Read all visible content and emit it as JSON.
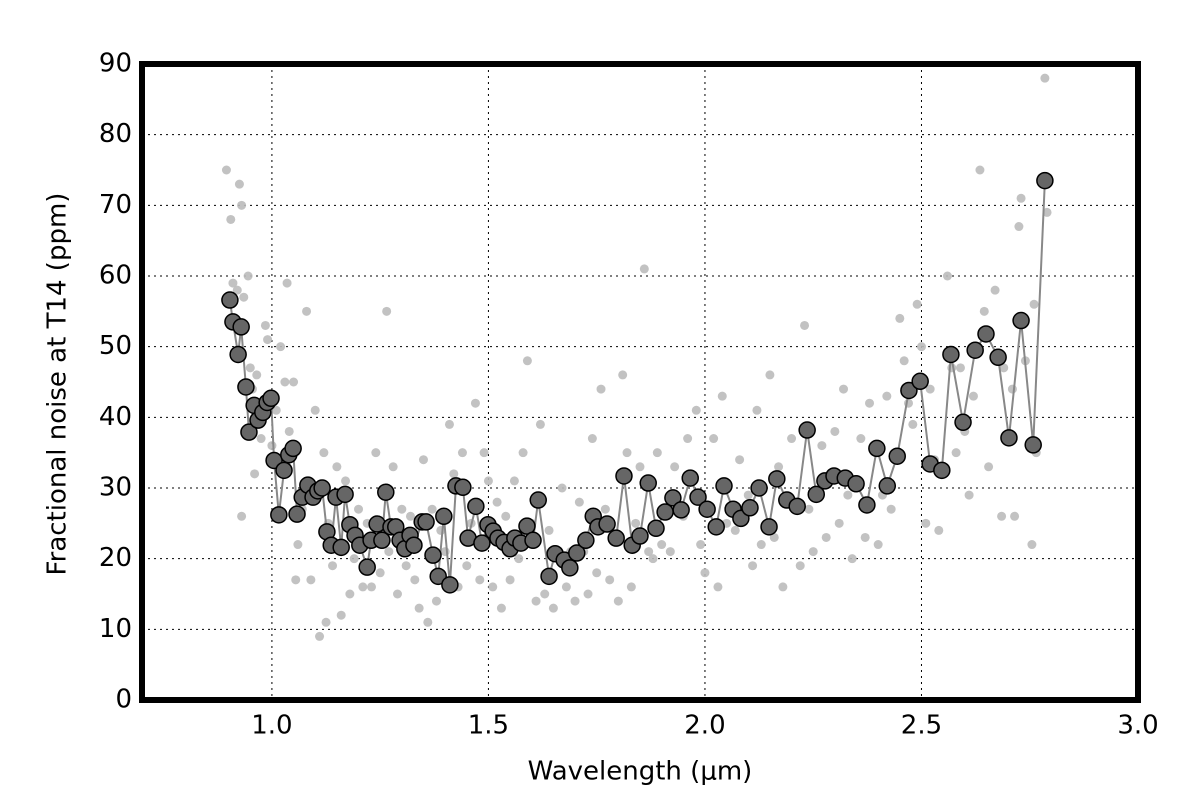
{
  "chart_data": {
    "type": "scatter",
    "xlabel": "Wavelength (μm)",
    "ylabel": "Fractional noise at T14 (ppm)",
    "xlim": [
      0.7,
      3.0
    ],
    "ylim": [
      0,
      90
    ],
    "xticks": [
      {
        "value": 1,
        "label": "1.0"
      },
      1.5,
      {
        "value": 2,
        "label": "2.0"
      },
      2.5,
      {
        "value": 3,
        "label": "3.0"
      }
    ],
    "yticks": [
      0,
      10,
      20,
      30,
      40,
      50,
      60,
      70,
      80,
      90
    ],
    "grid": true,
    "series": [
      {
        "color": "#bbbbbb",
        "line": false,
        "x": [
          0.895,
          0.905,
          0.91,
          0.92,
          0.925,
          0.93,
          0.935,
          0.945,
          0.95,
          0.955,
          0.96,
          0.965,
          0.93,
          0.94,
          0.975,
          0.985,
          0.99,
          1.0,
          1.01,
          1.02,
          1.03,
          1.035,
          1.04,
          1.05,
          1.055,
          1.06,
          1.07,
          1.08,
          1.085,
          1.09,
          1.1,
          1.11,
          1.12,
          1.125,
          1.13,
          1.14,
          1.15,
          1.16,
          1.17,
          1.18,
          1.19,
          1.2,
          1.21,
          1.22,
          1.23,
          1.24,
          1.25,
          1.265,
          1.27,
          1.28,
          1.29,
          1.3,
          1.31,
          1.32,
          1.33,
          1.34,
          1.35,
          1.36,
          1.37,
          1.38,
          1.39,
          1.4,
          1.41,
          1.42,
          1.43,
          1.44,
          1.45,
          1.46,
          1.47,
          1.48,
          1.49,
          1.5,
          1.51,
          1.52,
          1.53,
          1.54,
          1.55,
          1.56,
          1.57,
          1.58,
          1.59,
          1.6,
          1.61,
          1.62,
          1.63,
          1.64,
          1.65,
          1.66,
          1.67,
          1.68,
          1.69,
          1.7,
          1.71,
          1.72,
          1.73,
          1.74,
          1.75,
          1.76,
          1.77,
          1.78,
          1.79,
          1.8,
          1.81,
          1.82,
          1.83,
          1.84,
          1.85,
          1.86,
          1.87,
          1.88,
          1.89,
          1.9,
          1.92,
          1.93,
          1.95,
          1.96,
          1.98,
          1.99,
          2.0,
          2.02,
          2.03,
          2.04,
          2.05,
          2.07,
          2.08,
          2.1,
          2.11,
          2.12,
          2.13,
          2.15,
          2.16,
          2.17,
          2.18,
          2.2,
          2.22,
          2.23,
          2.24,
          2.25,
          2.27,
          2.28,
          2.3,
          2.31,
          2.32,
          2.33,
          2.34,
          2.36,
          2.37,
          2.38,
          2.4,
          2.41,
          2.42,
          2.43,
          2.45,
          2.46,
          2.47,
          2.48,
          2.49,
          2.5,
          2.51,
          2.52,
          2.53,
          2.54,
          2.56,
          2.57,
          2.58,
          2.59,
          2.6,
          2.61,
          2.62,
          2.635,
          2.645,
          2.655,
          2.67,
          2.685,
          2.69,
          2.71,
          2.715,
          2.725,
          2.73,
          2.74,
          2.755,
          2.76,
          2.765,
          2.785,
          2.79
        ],
        "values": [
          75,
          68,
          59,
          58,
          73,
          70,
          57,
          60,
          47,
          44,
          32,
          46,
          26,
          38,
          37,
          53,
          51,
          36,
          41,
          50,
          45,
          59,
          38,
          45,
          17,
          22,
          27,
          55,
          31,
          17,
          41,
          9,
          35,
          11,
          25,
          19,
          33,
          12,
          31,
          15,
          20,
          27,
          16,
          25,
          16,
          35,
          18,
          55,
          21,
          33,
          15,
          27,
          19,
          26,
          17,
          13,
          34,
          11,
          27,
          14,
          24,
          21,
          39,
          32,
          16,
          35,
          19,
          25,
          42,
          17,
          35,
          31,
          16,
          28,
          13,
          26,
          17,
          31,
          20,
          35,
          48,
          25,
          14,
          39,
          15,
          24,
          13,
          20,
          30,
          16,
          21,
          14,
          28,
          21,
          15,
          37,
          18,
          44,
          27,
          17,
          23,
          14,
          46,
          35,
          16,
          25,
          33,
          61,
          21,
          20,
          35,
          22,
          21,
          33,
          26,
          37,
          41,
          22,
          18,
          37,
          16,
          43,
          25,
          24,
          34,
          29,
          19,
          41,
          22,
          46,
          23,
          33,
          16,
          37,
          19,
          53,
          27,
          21,
          36,
          23,
          38,
          25,
          44,
          29,
          20,
          37,
          23,
          42,
          22,
          29,
          43,
          27,
          54,
          48,
          42,
          39,
          56,
          50,
          25,
          44,
          34,
          24,
          60,
          47,
          35,
          47,
          38,
          29,
          43,
          75,
          55,
          33,
          58,
          26,
          47,
          44,
          26,
          67,
          71,
          48,
          22,
          56,
          35,
          88,
          69
        ]
      },
      {
        "color": "#666666",
        "line": true,
        "line_color": "#888888",
        "x": [
          0.903,
          0.91,
          0.922,
          0.929,
          0.94,
          0.947,
          0.959,
          0.968,
          0.979,
          0.989,
          0.998,
          1.005,
          1.016,
          1.028,
          1.039,
          1.049,
          1.058,
          1.07,
          1.083,
          1.095,
          1.106,
          1.116,
          1.127,
          1.137,
          1.148,
          1.16,
          1.169,
          1.18,
          1.192,
          1.203,
          1.22,
          1.229,
          1.243,
          1.254,
          1.263,
          1.275,
          1.286,
          1.296,
          1.307,
          1.319,
          1.328,
          1.347,
          1.356,
          1.372,
          1.384,
          1.397,
          1.411,
          1.425,
          1.441,
          1.453,
          1.471,
          1.485,
          1.499,
          1.511,
          1.522,
          1.536,
          1.55,
          1.561,
          1.575,
          1.589,
          1.603,
          1.615,
          1.64,
          1.654,
          1.675,
          1.688,
          1.704,
          1.725,
          1.742,
          1.753,
          1.774,
          1.795,
          1.813,
          1.832,
          1.85,
          1.869,
          1.887,
          1.908,
          1.926,
          1.945,
          1.966,
          1.984,
          2.005,
          2.026,
          2.044,
          2.065,
          2.083,
          2.104,
          2.125,
          2.148,
          2.166,
          2.189,
          2.213,
          2.236,
          2.257,
          2.277,
          2.298,
          2.324,
          2.349,
          2.374,
          2.397,
          2.421,
          2.444,
          2.471,
          2.497,
          2.52,
          2.547,
          2.568,
          2.596,
          2.624,
          2.649,
          2.677,
          2.702,
          2.73,
          2.758,
          2.785
        ],
        "values": [
          56.6,
          53.5,
          48.9,
          52.8,
          44.3,
          37.9,
          41.7,
          39.6,
          40.7,
          42.1,
          42.7,
          33.9,
          26.2,
          32.5,
          34.7,
          35.6,
          26.3,
          28.7,
          30.4,
          28.7,
          29.6,
          30.0,
          23.8,
          21.9,
          28.7,
          21.6,
          29.1,
          24.8,
          23.3,
          21.9,
          18.8,
          22.6,
          24.9,
          22.6,
          29.4,
          24.5,
          24.5,
          22.6,
          21.4,
          23.3,
          21.9,
          25.2,
          25.2,
          20.5,
          17.5,
          26.0,
          16.3,
          30.3,
          30.1,
          22.9,
          27.4,
          22.2,
          24.8,
          23.9,
          22.9,
          22.3,
          21.4,
          22.9,
          22.2,
          24.6,
          22.6,
          28.3,
          17.5,
          20.7,
          19.8,
          18.7,
          20.8,
          22.6,
          26.0,
          24.5,
          24.9,
          22.9,
          31.7,
          21.9,
          23.2,
          30.7,
          24.3,
          26.6,
          28.6,
          26.9,
          31.4,
          28.7,
          27.0,
          24.5,
          30.3,
          27.0,
          25.7,
          27.2,
          30.0,
          24.5,
          31.3,
          28.3,
          27.4,
          38.2,
          29.1,
          31.0,
          31.7,
          31.4,
          30.6,
          27.6,
          35.6,
          30.3,
          34.5,
          43.8,
          45.1,
          33.4,
          32.5,
          48.9,
          39.3,
          49.5,
          51.8,
          48.5,
          37.1,
          53.7,
          36.1,
          73.5
        ]
      }
    ]
  }
}
